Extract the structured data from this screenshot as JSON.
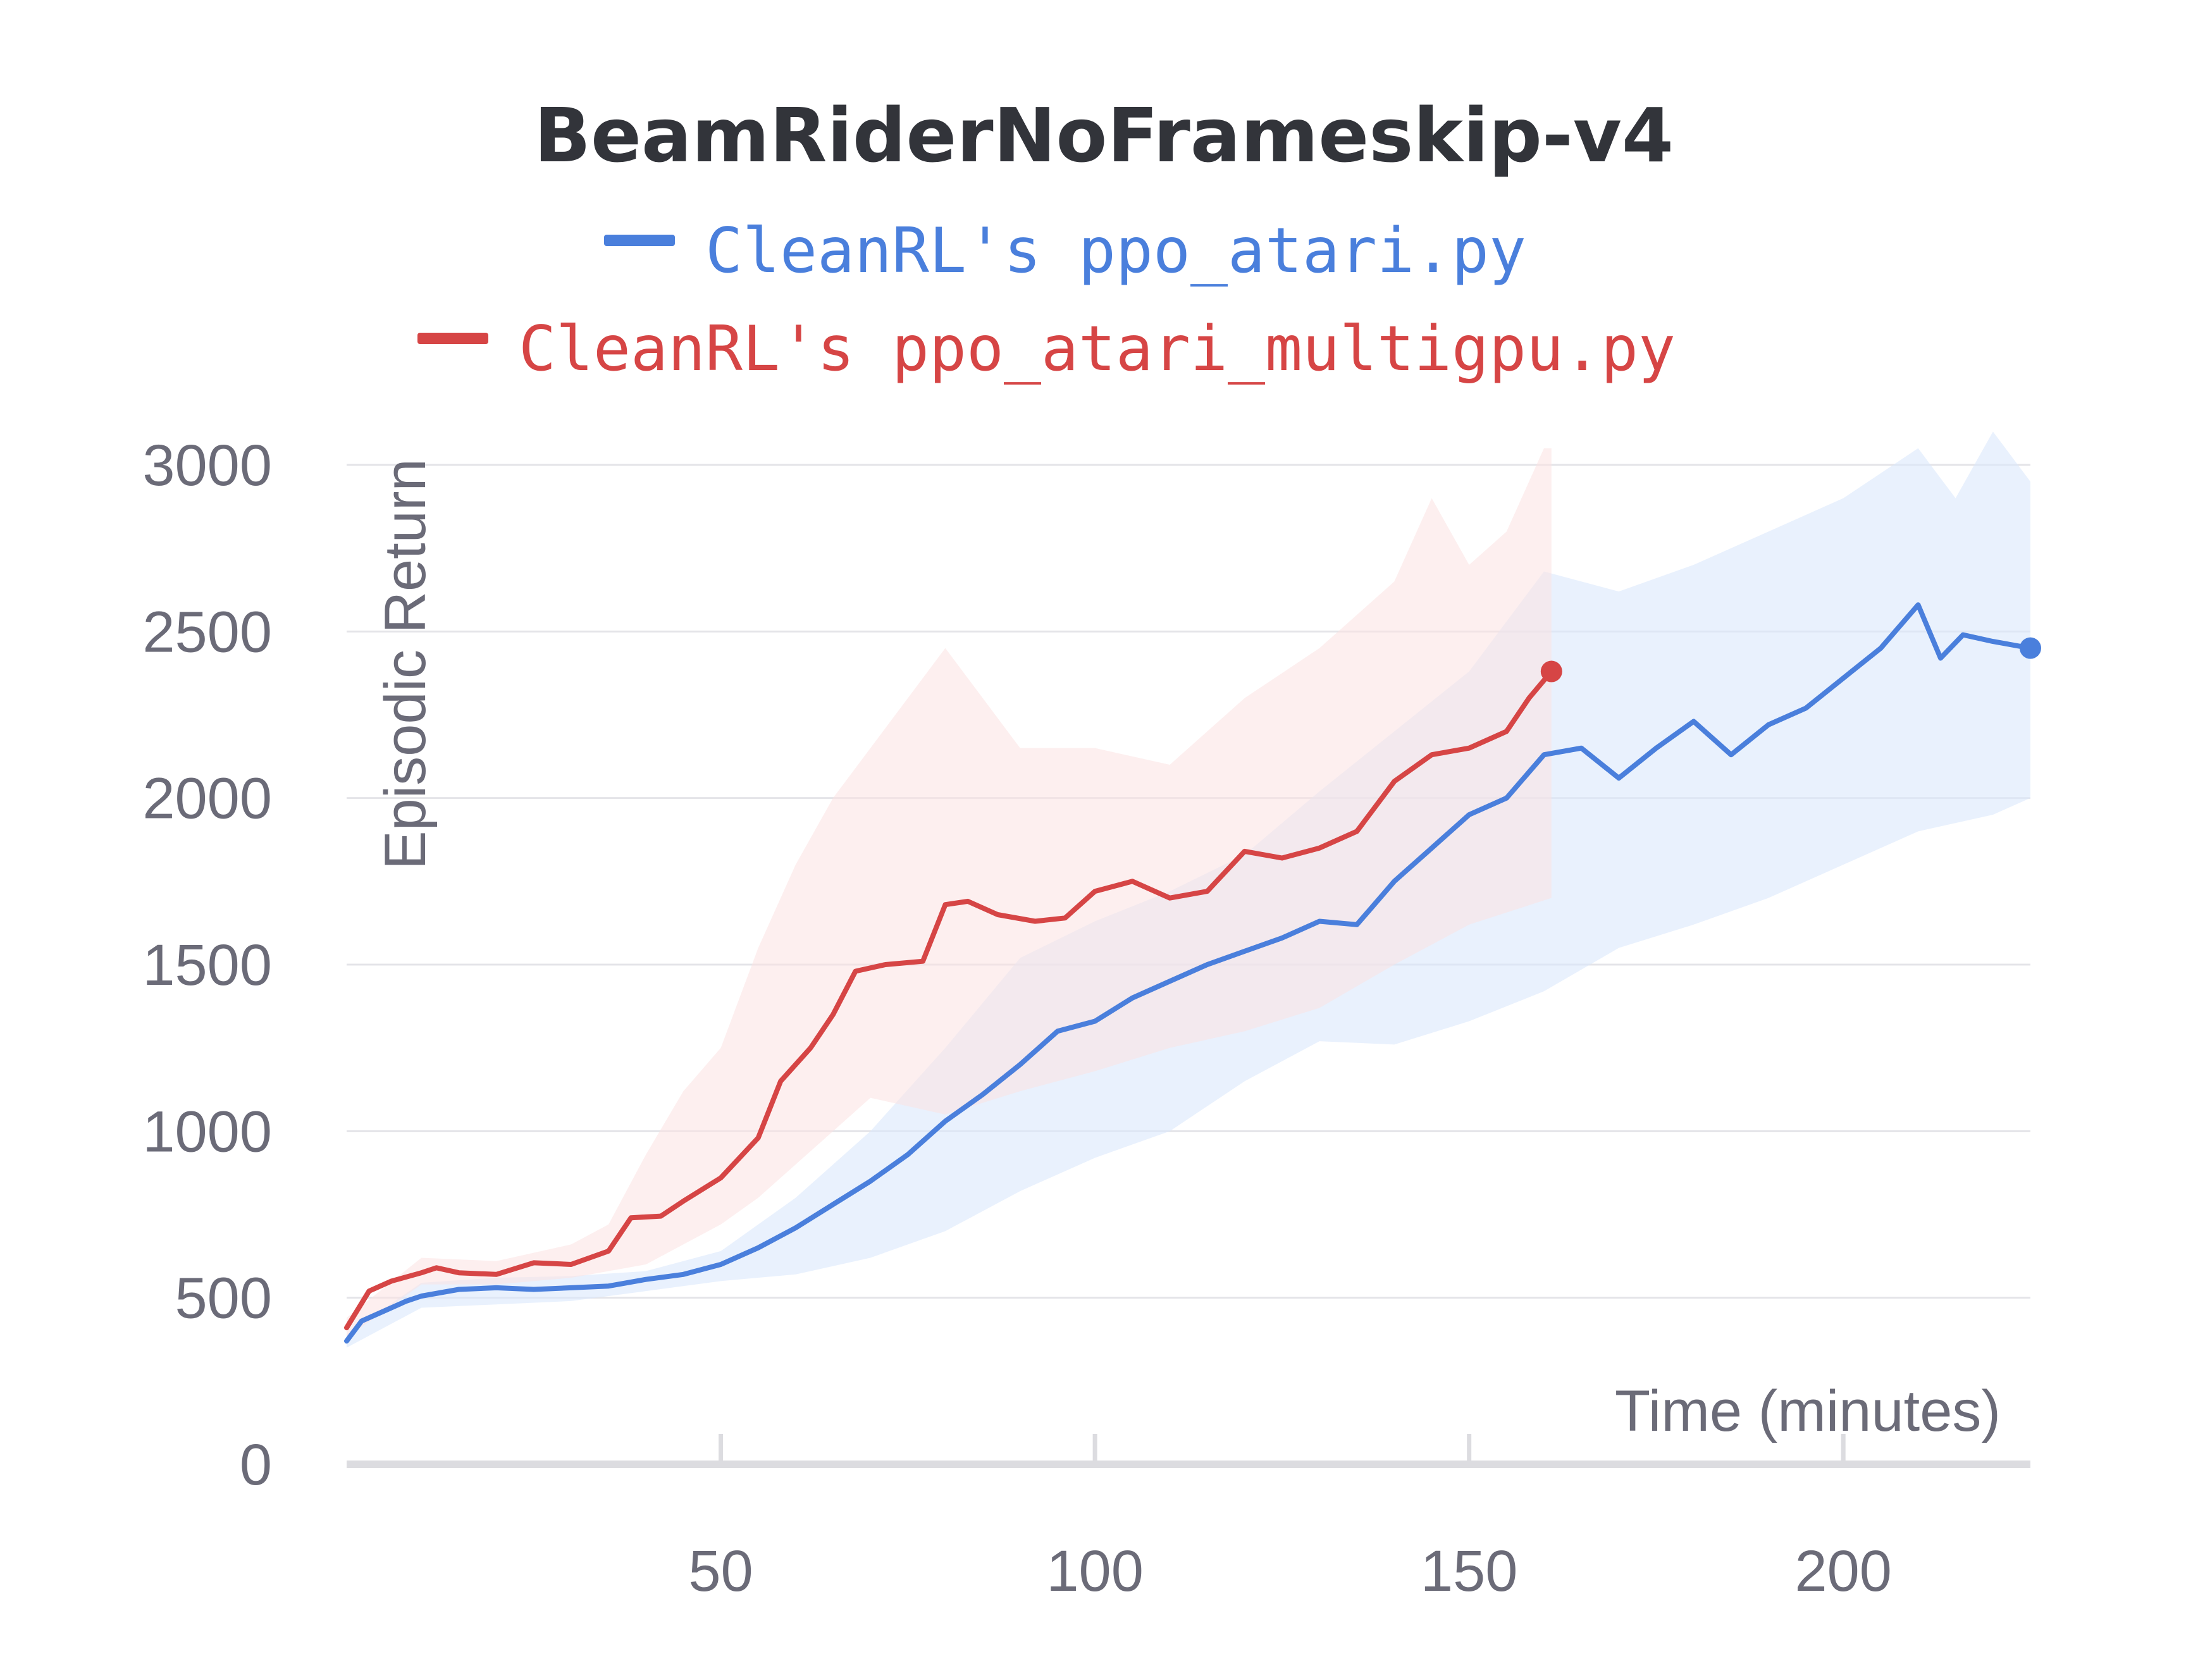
{
  "chart_data": {
    "type": "line",
    "title": "BeamRiderNoFrameskip-v4",
    "xlabel": "Time (minutes)",
    "ylabel": "Episodic Return",
    "xlim": [
      0,
      225
    ],
    "ylim": [
      0,
      3000
    ],
    "x_ticks": [
      50,
      100,
      150,
      200
    ],
    "y_ticks": [
      0,
      500,
      1000,
      1500,
      2000,
      2500,
      3000
    ],
    "grid": true,
    "legend_position": "top",
    "series": [
      {
        "name": "CleanRL's ppo_atari.py",
        "color": "#4a7fdc",
        "band_color": "#dbe7fb",
        "points": [
          [
            0,
            370
          ],
          [
            2,
            430
          ],
          [
            5,
            460
          ],
          [
            8,
            490
          ],
          [
            10,
            505
          ],
          [
            15,
            525
          ],
          [
            20,
            530
          ],
          [
            25,
            525
          ],
          [
            30,
            530
          ],
          [
            35,
            535
          ],
          [
            40,
            555
          ],
          [
            45,
            570
          ],
          [
            50,
            600
          ],
          [
            55,
            650
          ],
          [
            60,
            710
          ],
          [
            65,
            780
          ],
          [
            70,
            850
          ],
          [
            75,
            930
          ],
          [
            80,
            1030
          ],
          [
            85,
            1110
          ],
          [
            90,
            1200
          ],
          [
            95,
            1300
          ],
          [
            100,
            1330
          ],
          [
            105,
            1400
          ],
          [
            110,
            1450
          ],
          [
            115,
            1500
          ],
          [
            120,
            1540
          ],
          [
            125,
            1580
          ],
          [
            130,
            1630
          ],
          [
            135,
            1620
          ],
          [
            140,
            1750
          ],
          [
            145,
            1850
          ],
          [
            150,
            1950
          ],
          [
            155,
            2000
          ],
          [
            160,
            2130
          ],
          [
            165,
            2150
          ],
          [
            170,
            2060
          ],
          [
            175,
            2150
          ],
          [
            180,
            2230
          ],
          [
            185,
            2130
          ],
          [
            190,
            2220
          ],
          [
            195,
            2270
          ],
          [
            200,
            2360
          ],
          [
            205,
            2450
          ],
          [
            210,
            2580
          ],
          [
            213,
            2420
          ],
          [
            216,
            2490
          ],
          [
            220,
            2470
          ],
          [
            225,
            2450
          ]
        ],
        "band_lower": [
          [
            0,
            350
          ],
          [
            10,
            470
          ],
          [
            20,
            480
          ],
          [
            30,
            490
          ],
          [
            40,
            520
          ],
          [
            50,
            550
          ],
          [
            60,
            570
          ],
          [
            70,
            620
          ],
          [
            80,
            700
          ],
          [
            90,
            820
          ],
          [
            100,
            920
          ],
          [
            110,
            1000
          ],
          [
            120,
            1150
          ],
          [
            130,
            1270
          ],
          [
            140,
            1260
          ],
          [
            150,
            1330
          ],
          [
            160,
            1420
          ],
          [
            170,
            1550
          ],
          [
            180,
            1620
          ],
          [
            190,
            1700
          ],
          [
            200,
            1800
          ],
          [
            210,
            1900
          ],
          [
            220,
            1950
          ],
          [
            225,
            2000
          ]
        ],
        "band_upper": [
          [
            0,
            390
          ],
          [
            10,
            545
          ],
          [
            20,
            560
          ],
          [
            30,
            565
          ],
          [
            40,
            580
          ],
          [
            50,
            640
          ],
          [
            60,
            800
          ],
          [
            70,
            1000
          ],
          [
            80,
            1250
          ],
          [
            90,
            1520
          ],
          [
            100,
            1630
          ],
          [
            110,
            1720
          ],
          [
            120,
            1830
          ],
          [
            130,
            2020
          ],
          [
            140,
            2200
          ],
          [
            150,
            2380
          ],
          [
            160,
            2680
          ],
          [
            170,
            2620
          ],
          [
            180,
            2700
          ],
          [
            190,
            2800
          ],
          [
            200,
            2900
          ],
          [
            210,
            3050
          ],
          [
            215,
            2900
          ],
          [
            220,
            3100
          ],
          [
            225,
            2950
          ]
        ]
      },
      {
        "name": "CleanRL's ppo_atari_multigpu.py",
        "color": "#d64545",
        "band_color": "#fbe2e2",
        "points": [
          [
            0,
            410
          ],
          [
            3,
            520
          ],
          [
            6,
            550
          ],
          [
            10,
            575
          ],
          [
            12,
            590
          ],
          [
            15,
            575
          ],
          [
            20,
            570
          ],
          [
            25,
            605
          ],
          [
            30,
            600
          ],
          [
            35,
            640
          ],
          [
            38,
            740
          ],
          [
            42,
            745
          ],
          [
            45,
            790
          ],
          [
            50,
            860
          ],
          [
            55,
            980
          ],
          [
            58,
            1150
          ],
          [
            62,
            1250
          ],
          [
            65,
            1350
          ],
          [
            68,
            1480
          ],
          [
            72,
            1500
          ],
          [
            77,
            1510
          ],
          [
            80,
            1680
          ],
          [
            83,
            1690
          ],
          [
            87,
            1650
          ],
          [
            92,
            1630
          ],
          [
            96,
            1640
          ],
          [
            100,
            1720
          ],
          [
            105,
            1750
          ],
          [
            110,
            1700
          ],
          [
            115,
            1720
          ],
          [
            120,
            1840
          ],
          [
            125,
            1820
          ],
          [
            130,
            1850
          ],
          [
            135,
            1900
          ],
          [
            140,
            2050
          ],
          [
            145,
            2130
          ],
          [
            150,
            2150
          ],
          [
            155,
            2200
          ],
          [
            158,
            2300
          ],
          [
            161,
            2380
          ]
        ],
        "band_lower": [
          [
            0,
            380
          ],
          [
            10,
            540
          ],
          [
            20,
            540
          ],
          [
            30,
            560
          ],
          [
            40,
            600
          ],
          [
            45,
            660
          ],
          [
            50,
            720
          ],
          [
            55,
            800
          ],
          [
            60,
            900
          ],
          [
            65,
            1000
          ],
          [
            70,
            1100
          ],
          [
            80,
            1050
          ],
          [
            90,
            1120
          ],
          [
            100,
            1180
          ],
          [
            110,
            1250
          ],
          [
            120,
            1300
          ],
          [
            130,
            1370
          ],
          [
            140,
            1500
          ],
          [
            150,
            1620
          ],
          [
            161,
            1700
          ]
        ],
        "band_upper": [
          [
            0,
            440
          ],
          [
            10,
            620
          ],
          [
            20,
            610
          ],
          [
            30,
            660
          ],
          [
            35,
            720
          ],
          [
            40,
            930
          ],
          [
            45,
            1120
          ],
          [
            50,
            1250
          ],
          [
            55,
            1550
          ],
          [
            60,
            1800
          ],
          [
            65,
            2000
          ],
          [
            70,
            2150
          ],
          [
            75,
            2300
          ],
          [
            80,
            2450
          ],
          [
            85,
            2300
          ],
          [
            90,
            2150
          ],
          [
            100,
            2150
          ],
          [
            110,
            2100
          ],
          [
            120,
            2300
          ],
          [
            130,
            2450
          ],
          [
            140,
            2650
          ],
          [
            145,
            2900
          ],
          [
            150,
            2700
          ],
          [
            155,
            2800
          ],
          [
            160,
            3050
          ],
          [
            161,
            3050
          ]
        ]
      }
    ]
  }
}
